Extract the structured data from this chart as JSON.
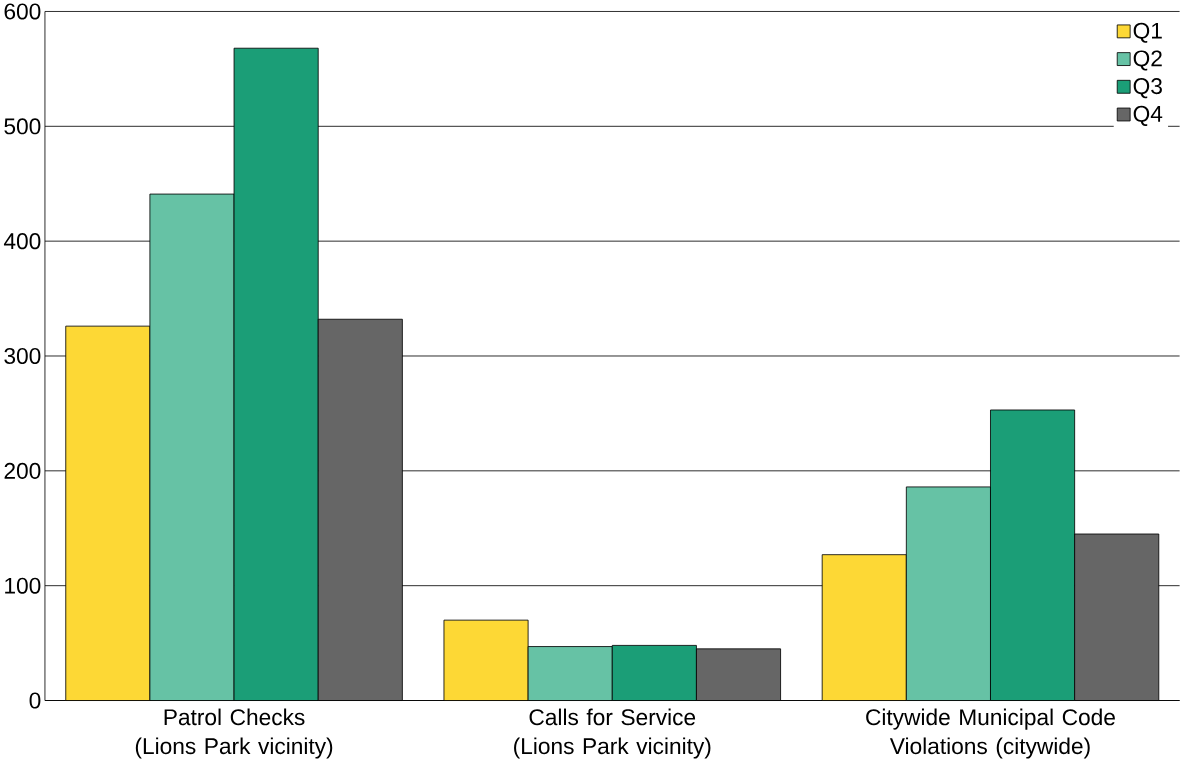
{
  "chart_data": {
    "type": "bar",
    "categories": [
      "Patrol Checks (Lions Park vicinity)",
      "Calls for Service (Lions Park vicinity)",
      "Citywide Municipal Code Violations (citywide)"
    ],
    "series": [
      {
        "name": "Q1",
        "color": "#fdd835",
        "values": [
          326,
          70,
          127
        ]
      },
      {
        "name": "Q2",
        "color": "#66c2a5",
        "values": [
          441,
          47,
          186
        ]
      },
      {
        "name": "Q3",
        "color": "#1b9e77",
        "values": [
          568,
          48,
          253
        ]
      },
      {
        "name": "Q4",
        "color": "#666666",
        "values": [
          332,
          45,
          145
        ]
      }
    ],
    "ylim": [
      0,
      600
    ],
    "yticks": [
      0,
      100,
      200,
      300,
      400,
      500,
      600
    ],
    "grid": "y",
    "legend": "top right"
  }
}
